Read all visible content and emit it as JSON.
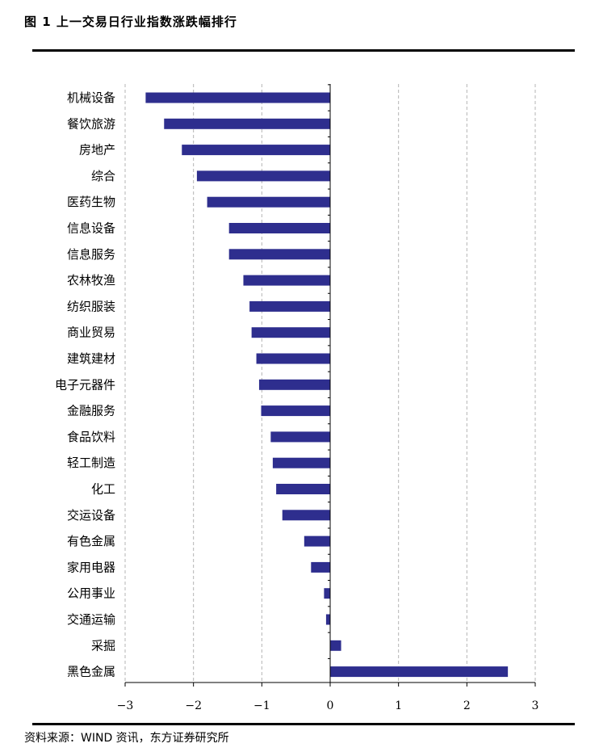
{
  "header": {
    "figure_title": "图 1 上一交易日行业指数涨跌幅排行"
  },
  "footer": {
    "source": "资料来源：WIND 资讯，东方证券研究所"
  },
  "colors": {
    "bar": "#2E2E8E",
    "grid": "#b5b5b5",
    "axis": "#000000"
  },
  "chart_data": {
    "type": "bar",
    "orientation": "horizontal",
    "categories": [
      "机械设备",
      "餐饮旅游",
      "房地产",
      "综合",
      "医药生物",
      "信息设备",
      "信息服务",
      "农林牧渔",
      "纺织服装",
      "商业贸易",
      "建筑建材",
      "电子元器件",
      "金融服务",
      "食品饮料",
      "轻工制造",
      "化工",
      "交运设备",
      "有色金属",
      "家用电器",
      "公用事业",
      "交通运输",
      "采掘",
      "黑色金属"
    ],
    "values": [
      -2.7,
      -2.43,
      -2.17,
      -1.95,
      -1.8,
      -1.48,
      -1.48,
      -1.27,
      -1.18,
      -1.15,
      -1.08,
      -1.04,
      -1.01,
      -0.87,
      -0.84,
      -0.79,
      -0.7,
      -0.38,
      -0.28,
      -0.09,
      -0.06,
      0.16,
      2.6
    ],
    "xlim": [
      -3,
      3
    ],
    "xticks": [
      -3,
      -2,
      -1,
      0,
      1,
      2,
      3
    ],
    "xtick_labels": [
      "−3",
      "−2",
      "−1",
      "0",
      "1",
      "2",
      "3"
    ],
    "grid": "vertical-dashed",
    "legend": "none"
  }
}
